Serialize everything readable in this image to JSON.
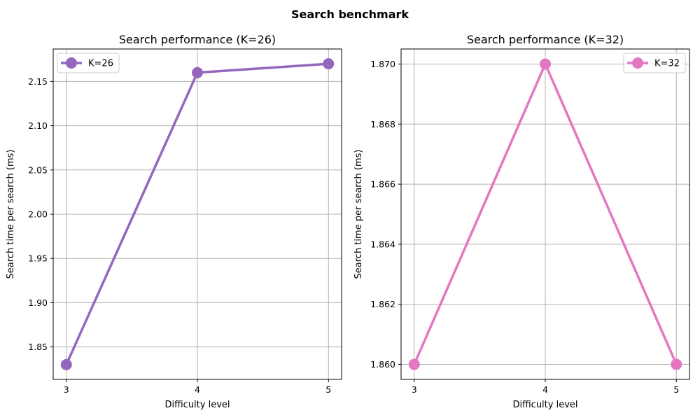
{
  "figure": {
    "suptitle": "Search benchmark"
  },
  "chart_data": [
    {
      "type": "line",
      "title": "Search performance (K=26)",
      "xlabel": "Difficulty level",
      "ylabel": "Search time per search (ms)",
      "x": [
        3,
        4,
        5
      ],
      "xticks": [
        "3",
        "4",
        "5"
      ],
      "xlim": [
        2.9,
        5.1
      ],
      "ylim": [
        1.8133,
        2.1867
      ],
      "yticks": [
        1.85,
        1.9,
        1.95,
        2.0,
        2.05,
        2.1,
        2.15
      ],
      "ytick_labels": [
        "1.85",
        "1.90",
        "1.95",
        "2.00",
        "2.05",
        "2.10",
        "2.15"
      ],
      "grid": true,
      "legend_position": "top-left",
      "series": [
        {
          "name": "K=26",
          "values": [
            1.83,
            2.16,
            2.17
          ],
          "color": "#9467bd"
        }
      ]
    },
    {
      "type": "line",
      "title": "Search performance (K=32)",
      "xlabel": "Difficulty level",
      "ylabel": "Search time per search (ms)",
      "x": [
        3,
        4,
        5
      ],
      "xticks": [
        "3",
        "4",
        "5"
      ],
      "xlim": [
        2.9,
        5.1
      ],
      "ylim": [
        1.8595,
        1.8705
      ],
      "yticks": [
        1.86,
        1.862,
        1.864,
        1.866,
        1.868,
        1.87
      ],
      "ytick_labels": [
        "1.860",
        "1.862",
        "1.864",
        "1.866",
        "1.868",
        "1.870"
      ],
      "grid": true,
      "legend_position": "top-right",
      "series": [
        {
          "name": "K=32",
          "values": [
            1.86,
            1.87,
            1.86
          ],
          "color": "#e377c2"
        }
      ]
    }
  ]
}
